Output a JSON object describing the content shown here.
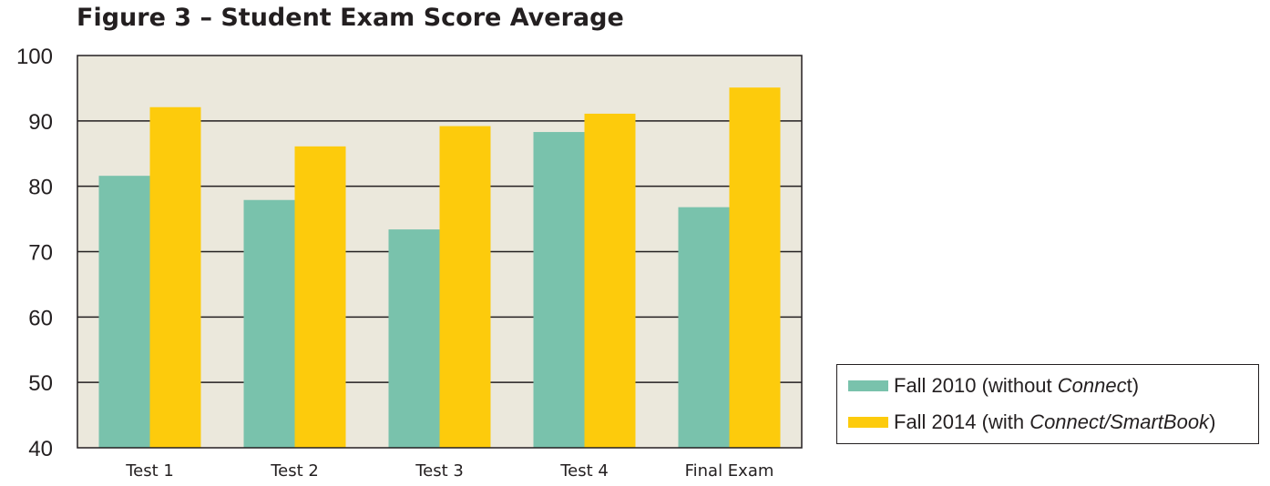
{
  "chart_data": {
    "type": "bar",
    "title": "Figure 3 – Student Exam Score Average",
    "xlabel": "",
    "ylabel": "",
    "categories": [
      "Test 1",
      "Test 2",
      "Test 3",
      "Test 4",
      "Final Exam"
    ],
    "series": [
      {
        "name": "Fall 2010 (without Connect)",
        "values": [
          81.6,
          77.9,
          73.4,
          88.3,
          76.8
        ],
        "color": "#79c2ac"
      },
      {
        "name": "Fall 2014 (with Connect/SmartBook)",
        "values": [
          92.1,
          86.1,
          89.2,
          91.1,
          95.1
        ],
        "color": "#fdcb0c"
      }
    ],
    "ylim": [
      40,
      100
    ],
    "yticks": [
      "40",
      "50",
      "60",
      "70",
      "80",
      "90",
      "100"
    ],
    "grid": true,
    "legend_position": "bottom-right",
    "plot_background": "#ebe8dc"
  },
  "legend": {
    "item1": {
      "pre": "Fall 2010 (without ",
      "italic": "Connec",
      "post": "t)"
    },
    "item2": {
      "pre": "Fall 2014 (with ",
      "italic": "Connect/SmartBook",
      "post": ")"
    }
  }
}
